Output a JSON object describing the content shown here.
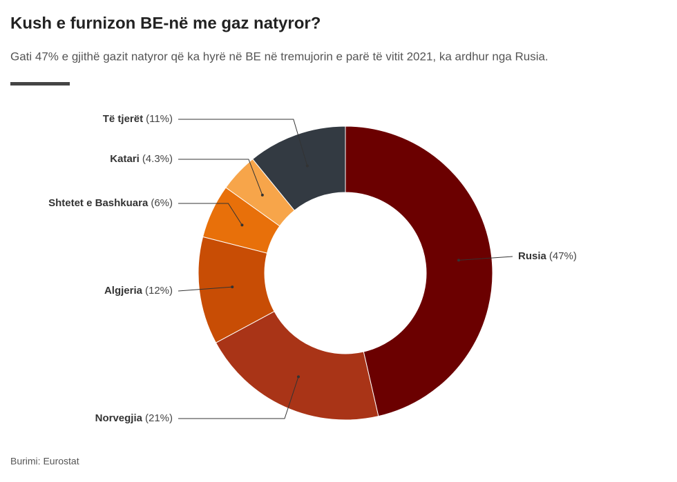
{
  "chart_data": {
    "type": "donut",
    "title": "Kush e furnizon BE-në me gaz natyror?",
    "subtitle": "Gati 47% e gjithë gazit natyror që ka hyrë në BE në tremujorin e parë të vitit 2021, ka ardhur nga Rusia.",
    "source": "Burimi: Eurostat",
    "categories": [
      "Rusia",
      "Norvegjia",
      "Algjeria",
      "Shtetet e Bashkuara",
      "Katari",
      "Të tjerët"
    ],
    "values": [
      47,
      21,
      12,
      6,
      4.3,
      11
    ],
    "value_labels": [
      "(47%)",
      "(21%)",
      "(12%)",
      "(6%)",
      "(4.3%)",
      "(11%)"
    ],
    "colors": [
      "#6b0000",
      "#a93417",
      "#c84d05",
      "#e8700a",
      "#f7a54a",
      "#333a42"
    ]
  }
}
